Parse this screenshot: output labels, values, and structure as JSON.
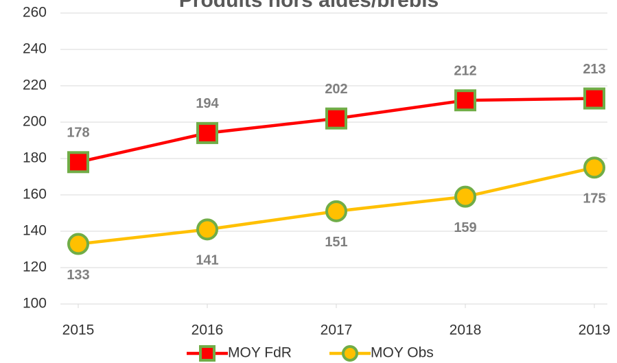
{
  "chart_data": {
    "type": "line",
    "title": "Produits hors aides/brebis",
    "categories": [
      "2015",
      "2016",
      "2017",
      "2018",
      "2019"
    ],
    "series": [
      {
        "name": "MOY FdR",
        "color": "#ff0000",
        "marker": "square",
        "marker_edge_color": "#70ad47",
        "values": [
          178,
          194,
          202,
          212,
          213
        ]
      },
      {
        "name": "MOY Obs",
        "color": "#ffc000",
        "marker": "circle",
        "marker_edge_color": "#70ad47",
        "values": [
          133,
          141,
          151,
          159,
          175
        ]
      }
    ],
    "ylim": [
      100,
      260
    ],
    "yticks": [
      100,
      120,
      140,
      160,
      180,
      200,
      220,
      240,
      260
    ],
    "grid": true,
    "legend": "bottom"
  }
}
